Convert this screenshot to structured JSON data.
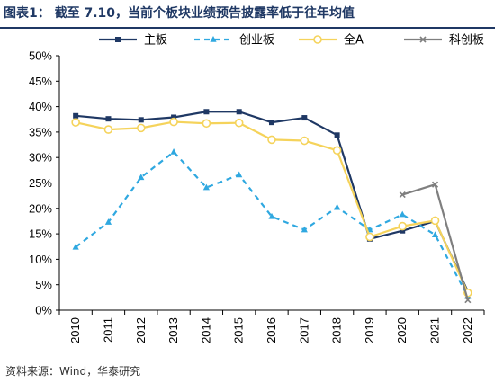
{
  "title": "图表1：  截至 7.10，当前个板块业绩预告披露率低于往年均值",
  "source": "资料来源：Wind，华泰研究",
  "chart_data": {
    "type": "line",
    "categories": [
      "2010",
      "2011",
      "2012",
      "2013",
      "2014",
      "2015",
      "2016",
      "2017",
      "2018",
      "2019",
      "2020",
      "2021",
      "2022"
    ],
    "ylim": [
      0,
      50
    ],
    "yticks": [
      0,
      5,
      10,
      15,
      20,
      25,
      30,
      35,
      40,
      45,
      50
    ],
    "ytick_labels": [
      "0%",
      "5%",
      "10%",
      "15%",
      "20%",
      "25%",
      "30%",
      "35%",
      "40%",
      "45%",
      "50%"
    ],
    "legend_position": "top",
    "grid": false,
    "series": [
      {
        "name": "主板",
        "color": "#1f3864",
        "style": "solid",
        "marker": "square",
        "values": [
          38.2,
          37.6,
          37.4,
          37.9,
          39.0,
          39.0,
          36.9,
          37.8,
          34.4,
          14.0,
          15.6,
          17.5,
          3.7
        ]
      },
      {
        "name": "创业板",
        "color": "#2fa8e0",
        "style": "dashed",
        "marker": "triangle",
        "values": [
          12.4,
          17.3,
          26.1,
          31.1,
          24.1,
          26.6,
          18.4,
          15.8,
          20.2,
          15.8,
          18.8,
          14.8,
          2.7
        ]
      },
      {
        "name": "全A",
        "color": "#f5d35b",
        "style": "solid",
        "marker": "circle",
        "values": [
          36.9,
          35.5,
          35.8,
          37.0,
          36.7,
          36.8,
          33.5,
          33.3,
          31.4,
          14.4,
          16.5,
          17.6,
          3.4
        ]
      },
      {
        "name": "科创板",
        "color": "#7f7f7f",
        "style": "solid",
        "marker": "x",
        "values": [
          null,
          null,
          null,
          null,
          null,
          null,
          null,
          null,
          null,
          null,
          22.7,
          24.7,
          2.0
        ]
      }
    ]
  }
}
